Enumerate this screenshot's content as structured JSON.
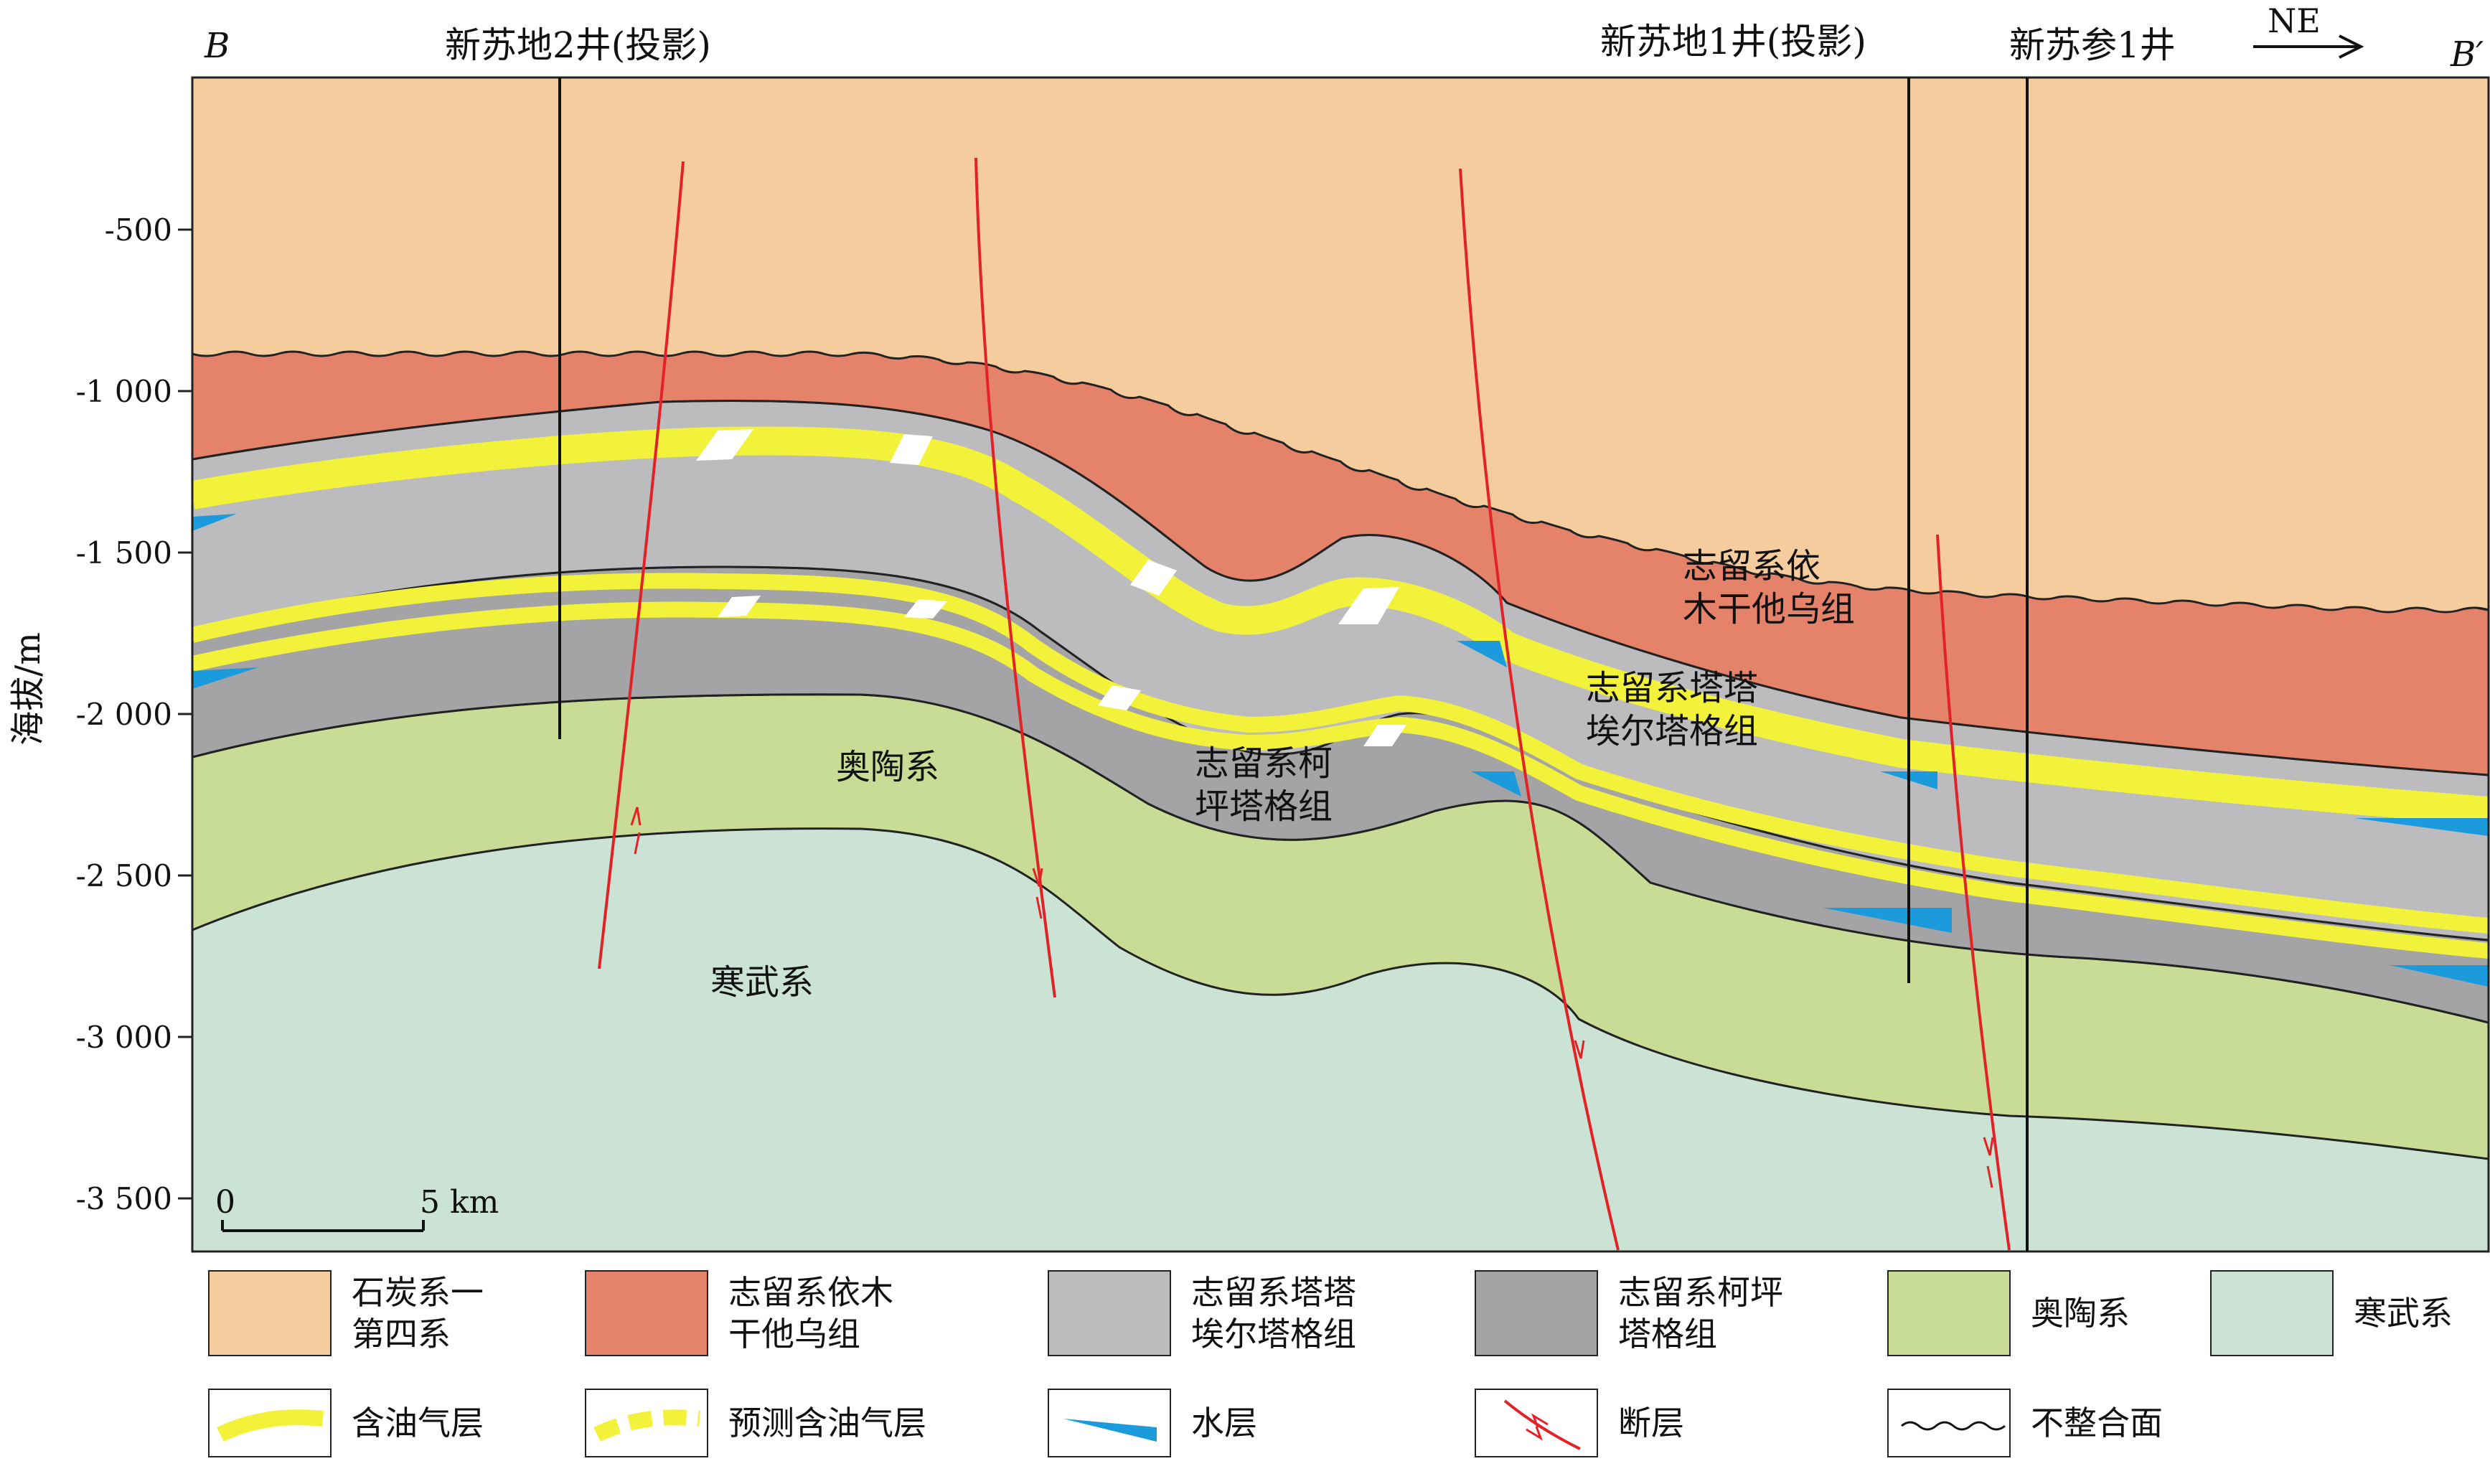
{
  "section": {
    "left_label": "B",
    "right_label": "B′",
    "direction_label": "NE",
    "y_axis_label": "海拔/m",
    "y_ticks": [
      "-500",
      "-1 000",
      "-1 500",
      "-2 000",
      "-2 500",
      "-3 000",
      "-3 500"
    ],
    "scale_bar": {
      "zero": "0",
      "end": "5 km"
    },
    "wells": [
      {
        "name": "新苏地2井(投影)"
      },
      {
        "name": "新苏地1井(投影)"
      },
      {
        "name": "新苏参1井"
      }
    ],
    "unit_labels": {
      "ordovician": "奥陶系",
      "cambrian": "寒武系",
      "kepingtage": "志留系柯\n坪塔格组",
      "tataaiertage": "志留系塔塔\n埃尔塔格组",
      "yimugantawu": "志留系依\n木干他乌组"
    },
    "colors": {
      "carboniferous_quaternary": "#F4CC9E",
      "yimugantawu": "#E5836A",
      "tataaiertage": "#BCBCBE",
      "kepingtage": "#A4A4A7",
      "ordovician": "#C8DC96",
      "cambrian": "#CBE3D5",
      "oil_gas": "#F2F23A",
      "water": "#1B9BDB",
      "fault": "#E32227"
    }
  },
  "legend": {
    "units": [
      {
        "label": "石炭系一\n第四系",
        "color": "#F4CC9E"
      },
      {
        "label": "志留系依木\n干他乌组",
        "color": "#E5836A"
      },
      {
        "label": "志留系塔塔\n埃尔塔格组",
        "color": "#BCBCBE"
      },
      {
        "label": "志留系柯坪\n塔格组",
        "color": "#A4A4A7"
      },
      {
        "label": "奥陶系",
        "color": "#C8DC96"
      },
      {
        "label": "寒武系",
        "color": "#CBE3D5"
      }
    ],
    "symbols": [
      {
        "label": "含油气层",
        "icon": "oil-gas-layer-icon"
      },
      {
        "label": "预测含油气层",
        "icon": "predicted-oil-gas-layer-icon"
      },
      {
        "label": "水层",
        "icon": "water-layer-icon"
      },
      {
        "label": "断层",
        "icon": "fault-icon"
      },
      {
        "label": "不整合面",
        "icon": "unconformity-icon"
      }
    ]
  }
}
